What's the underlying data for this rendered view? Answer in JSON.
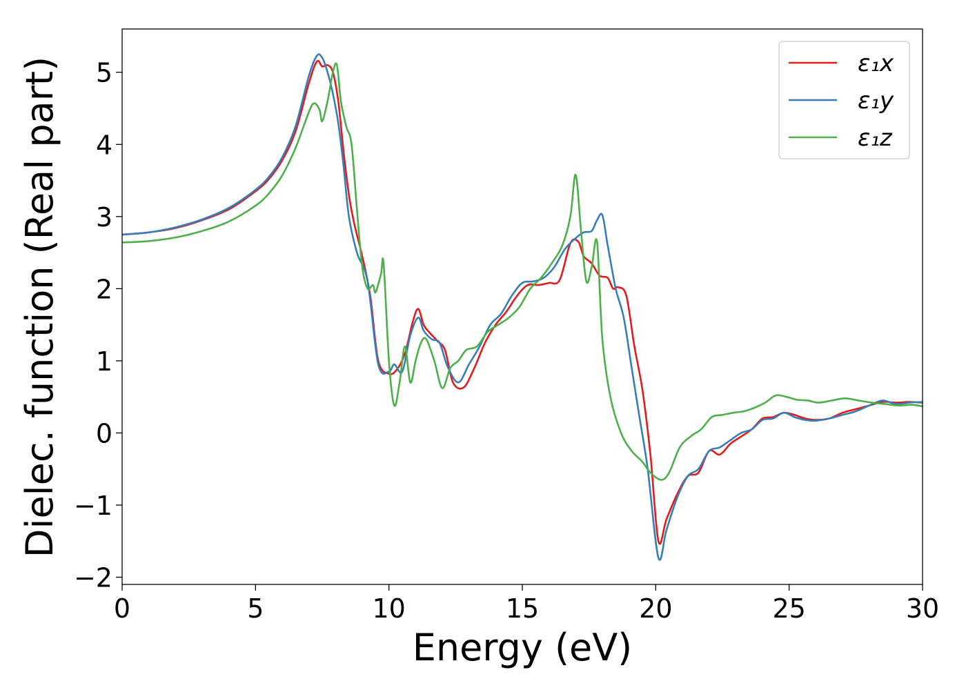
{
  "chart_data": {
    "type": "line",
    "xlabel": "Energy (eV)",
    "ylabel": "Dielec. function (Real part)",
    "xlim": [
      0,
      30
    ],
    "ylim": [
      -2.1,
      5.6
    ],
    "xticks": [
      0,
      5,
      10,
      15,
      20,
      25,
      30
    ],
    "xtick_labels": [
      "0",
      "5",
      "10",
      "15",
      "20",
      "25",
      "30"
    ],
    "yticks": [
      -2,
      -1,
      0,
      1,
      2,
      3,
      4,
      5
    ],
    "ytick_labels": [
      "−2",
      "−1",
      "0",
      "1",
      "2",
      "3",
      "4",
      "5"
    ],
    "grid": false,
    "legend_position": "top-right",
    "series": [
      {
        "name": "ε₁x",
        "color": "#e41a1c",
        "points": [
          [
            0,
            2.75
          ],
          [
            1,
            2.78
          ],
          [
            2,
            2.84
          ],
          [
            3,
            2.95
          ],
          [
            4,
            3.1
          ],
          [
            5,
            3.35
          ],
          [
            5.5,
            3.52
          ],
          [
            6,
            3.78
          ],
          [
            6.5,
            4.18
          ],
          [
            7,
            4.85
          ],
          [
            7.3,
            5.15
          ],
          [
            7.5,
            5.08
          ],
          [
            7.7,
            5.1
          ],
          [
            7.9,
            5.0
          ],
          [
            8.1,
            4.6
          ],
          [
            8.3,
            3.9
          ],
          [
            8.5,
            3.3
          ],
          [
            8.7,
            2.9
          ],
          [
            9,
            2.45
          ],
          [
            9.3,
            1.9
          ],
          [
            9.6,
            1.0
          ],
          [
            10,
            0.82
          ],
          [
            10.3,
            0.88
          ],
          [
            10.6,
            1.1
          ],
          [
            10.9,
            1.55
          ],
          [
            11.1,
            1.72
          ],
          [
            11.3,
            1.5
          ],
          [
            11.5,
            1.4
          ],
          [
            11.8,
            1.28
          ],
          [
            12.1,
            1.15
          ],
          [
            12.4,
            0.7
          ],
          [
            12.8,
            0.63
          ],
          [
            13.2,
            0.9
          ],
          [
            13.6,
            1.25
          ],
          [
            14,
            1.5
          ],
          [
            14.4,
            1.68
          ],
          [
            14.8,
            1.9
          ],
          [
            15.2,
            2.05
          ],
          [
            15.6,
            2.05
          ],
          [
            16,
            2.08
          ],
          [
            16.4,
            2.12
          ],
          [
            16.8,
            2.63
          ],
          [
            17.1,
            2.65
          ],
          [
            17.3,
            2.45
          ],
          [
            17.6,
            2.35
          ],
          [
            17.9,
            2.18
          ],
          [
            18.2,
            2.15
          ],
          [
            18.4,
            2.0
          ],
          [
            18.6,
            2.02
          ],
          [
            18.9,
            1.9
          ],
          [
            19.2,
            1.2
          ],
          [
            19.5,
            0.6
          ],
          [
            19.8,
            -0.3
          ],
          [
            20.1,
            -1.5
          ],
          [
            20.4,
            -1.2
          ],
          [
            20.8,
            -0.85
          ],
          [
            21.2,
            -0.6
          ],
          [
            21.6,
            -0.55
          ],
          [
            22,
            -0.25
          ],
          [
            22.4,
            -0.3
          ],
          [
            22.8,
            -0.15
          ],
          [
            23.2,
            -0.05
          ],
          [
            23.6,
            0.05
          ],
          [
            24,
            0.2
          ],
          [
            24.4,
            0.22
          ],
          [
            24.8,
            0.28
          ],
          [
            25.2,
            0.25
          ],
          [
            25.6,
            0.2
          ],
          [
            26,
            0.18
          ],
          [
            26.5,
            0.2
          ],
          [
            27,
            0.28
          ],
          [
            27.5,
            0.33
          ],
          [
            28,
            0.38
          ],
          [
            28.5,
            0.43
          ],
          [
            29,
            0.42
          ],
          [
            29.5,
            0.43
          ],
          [
            30,
            0.42
          ]
        ]
      },
      {
        "name": "ε₁y",
        "color": "#377eb8",
        "points": [
          [
            0,
            2.75
          ],
          [
            1,
            2.78
          ],
          [
            2,
            2.85
          ],
          [
            3,
            2.96
          ],
          [
            4,
            3.12
          ],
          [
            5,
            3.37
          ],
          [
            5.5,
            3.55
          ],
          [
            6,
            3.82
          ],
          [
            6.5,
            4.25
          ],
          [
            7,
            4.95
          ],
          [
            7.3,
            5.23
          ],
          [
            7.5,
            5.2
          ],
          [
            7.7,
            5.0
          ],
          [
            7.9,
            4.7
          ],
          [
            8.1,
            4.3
          ],
          [
            8.3,
            3.7
          ],
          [
            8.5,
            3.0
          ],
          [
            8.8,
            2.5
          ],
          [
            9.2,
            2.1
          ],
          [
            9.6,
            0.95
          ],
          [
            10,
            0.85
          ],
          [
            10.2,
            0.95
          ],
          [
            10.5,
            0.85
          ],
          [
            10.8,
            1.35
          ],
          [
            11.1,
            1.6
          ],
          [
            11.3,
            1.42
          ],
          [
            11.6,
            1.3
          ],
          [
            11.9,
            1.25
          ],
          [
            12.2,
            0.92
          ],
          [
            12.6,
            0.7
          ],
          [
            13,
            0.95
          ],
          [
            13.4,
            1.2
          ],
          [
            13.8,
            1.5
          ],
          [
            14.2,
            1.65
          ],
          [
            14.6,
            1.9
          ],
          [
            15,
            2.08
          ],
          [
            15.4,
            2.1
          ],
          [
            15.8,
            2.15
          ],
          [
            16.2,
            2.3
          ],
          [
            16.6,
            2.55
          ],
          [
            17,
            2.7
          ],
          [
            17.3,
            2.78
          ],
          [
            17.6,
            2.8
          ],
          [
            17.8,
            2.95
          ],
          [
            18,
            3.02
          ],
          [
            18.2,
            2.6
          ],
          [
            18.5,
            2.0
          ],
          [
            18.8,
            1.6
          ],
          [
            19.1,
            0.9
          ],
          [
            19.4,
            0.2
          ],
          [
            19.7,
            -0.5
          ],
          [
            20.1,
            -1.73
          ],
          [
            20.4,
            -1.35
          ],
          [
            20.8,
            -0.9
          ],
          [
            21.2,
            -0.6
          ],
          [
            21.6,
            -0.5
          ],
          [
            22,
            -0.25
          ],
          [
            22.4,
            -0.2
          ],
          [
            22.8,
            -0.1
          ],
          [
            23.2,
            0.0
          ],
          [
            23.6,
            0.05
          ],
          [
            24,
            0.18
          ],
          [
            24.4,
            0.2
          ],
          [
            24.8,
            0.28
          ],
          [
            25.2,
            0.22
          ],
          [
            25.6,
            0.18
          ],
          [
            26,
            0.17
          ],
          [
            26.5,
            0.2
          ],
          [
            27,
            0.25
          ],
          [
            27.5,
            0.3
          ],
          [
            28,
            0.38
          ],
          [
            28.5,
            0.45
          ],
          [
            29,
            0.4
          ],
          [
            29.5,
            0.42
          ],
          [
            30,
            0.43
          ]
        ]
      },
      {
        "name": "ε₁z",
        "color": "#4daf4a",
        "points": [
          [
            0,
            2.64
          ],
          [
            1,
            2.66
          ],
          [
            2,
            2.71
          ],
          [
            3,
            2.8
          ],
          [
            4,
            2.93
          ],
          [
            5,
            3.15
          ],
          [
            5.5,
            3.32
          ],
          [
            6,
            3.57
          ],
          [
            6.5,
            3.95
          ],
          [
            7,
            4.45
          ],
          [
            7.2,
            4.57
          ],
          [
            7.4,
            4.48
          ],
          [
            7.5,
            4.32
          ],
          [
            7.7,
            4.6
          ],
          [
            7.9,
            5.0
          ],
          [
            8.05,
            5.1
          ],
          [
            8.2,
            4.6
          ],
          [
            8.4,
            4.25
          ],
          [
            8.6,
            4.0
          ],
          [
            8.8,
            3.1
          ],
          [
            9.0,
            2.3
          ],
          [
            9.2,
            2.0
          ],
          [
            9.4,
            2.05
          ],
          [
            9.5,
            1.95
          ],
          [
            9.7,
            2.2
          ],
          [
            9.8,
            2.35
          ],
          [
            10.0,
            1.0
          ],
          [
            10.2,
            0.38
          ],
          [
            10.4,
            0.7
          ],
          [
            10.6,
            1.2
          ],
          [
            10.8,
            0.7
          ],
          [
            11.0,
            1.0
          ],
          [
            11.2,
            1.25
          ],
          [
            11.4,
            1.3
          ],
          [
            11.7,
            1.0
          ],
          [
            12.0,
            0.62
          ],
          [
            12.3,
            0.9
          ],
          [
            12.6,
            1.0
          ],
          [
            12.9,
            1.15
          ],
          [
            13.3,
            1.2
          ],
          [
            13.7,
            1.4
          ],
          [
            14.1,
            1.5
          ],
          [
            14.5,
            1.6
          ],
          [
            14.9,
            1.75
          ],
          [
            15.3,
            2.0
          ],
          [
            15.7,
            2.15
          ],
          [
            16.1,
            2.35
          ],
          [
            16.5,
            2.6
          ],
          [
            16.8,
            3.0
          ],
          [
            17.0,
            3.58
          ],
          [
            17.2,
            2.8
          ],
          [
            17.4,
            2.1
          ],
          [
            17.6,
            2.3
          ],
          [
            17.8,
            2.65
          ],
          [
            18.0,
            1.3
          ],
          [
            18.3,
            0.5
          ],
          [
            18.7,
            0.0
          ],
          [
            19.1,
            -0.25
          ],
          [
            19.5,
            -0.4
          ],
          [
            19.8,
            -0.55
          ],
          [
            20.2,
            -0.65
          ],
          [
            20.5,
            -0.55
          ],
          [
            20.9,
            -0.2
          ],
          [
            21.3,
            -0.05
          ],
          [
            21.7,
            0.05
          ],
          [
            22.1,
            0.22
          ],
          [
            22.5,
            0.25
          ],
          [
            22.9,
            0.28
          ],
          [
            23.3,
            0.3
          ],
          [
            23.7,
            0.35
          ],
          [
            24.1,
            0.42
          ],
          [
            24.5,
            0.52
          ],
          [
            24.9,
            0.5
          ],
          [
            25.3,
            0.46
          ],
          [
            25.7,
            0.45
          ],
          [
            26.1,
            0.42
          ],
          [
            26.6,
            0.45
          ],
          [
            27.1,
            0.48
          ],
          [
            27.6,
            0.45
          ],
          [
            28.1,
            0.42
          ],
          [
            28.6,
            0.4
          ],
          [
            29.1,
            0.38
          ],
          [
            29.6,
            0.39
          ],
          [
            30,
            0.37
          ]
        ]
      }
    ]
  }
}
